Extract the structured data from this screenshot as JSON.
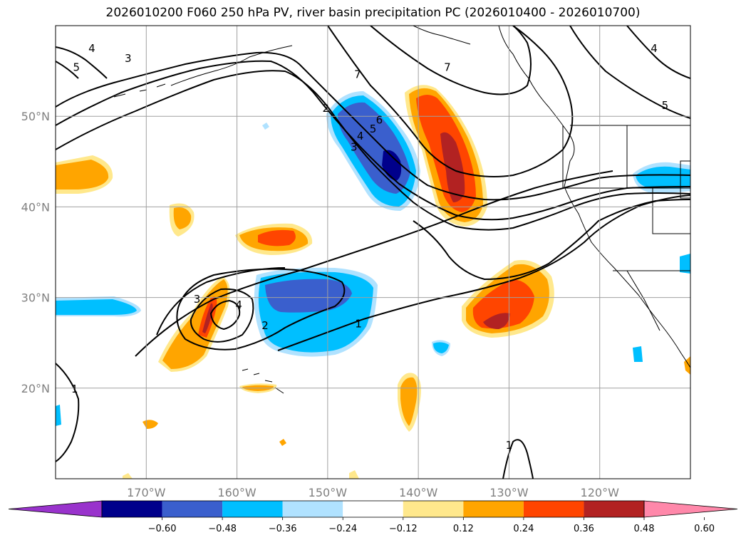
{
  "title": "2026010200 F060 250 hPa PV, river basin precipitation PC (2026010400 - 2026010700)",
  "map": {
    "lon_range": [
      -180,
      -110
    ],
    "lat_range": [
      10,
      60
    ],
    "lat_ticks": [
      {
        "value": 50,
        "label": "50°N"
      },
      {
        "value": 40,
        "label": "40°N"
      },
      {
        "value": 30,
        "label": "30°N"
      },
      {
        "value": 20,
        "label": "20°N"
      }
    ],
    "lon_ticks": [
      {
        "value": -170,
        "label": "170°W"
      },
      {
        "value": -160,
        "label": "160°W"
      },
      {
        "value": -150,
        "label": "150°W"
      },
      {
        "value": -140,
        "label": "140°W"
      },
      {
        "value": -130,
        "label": "130°W"
      },
      {
        "value": -120,
        "label": "120°W"
      }
    ],
    "grid": true,
    "pv_contour_labels": [
      {
        "text": "4",
        "lon": -176,
        "lat": 57.5
      },
      {
        "text": "5",
        "lon": -177.7,
        "lat": 55.4
      },
      {
        "text": "3",
        "lon": -172,
        "lat": 56.4
      },
      {
        "text": "2",
        "lon": -150.2,
        "lat": 50.9
      },
      {
        "text": "7",
        "lon": -146.7,
        "lat": 54.6
      },
      {
        "text": "6",
        "lon": -144.3,
        "lat": 49.6
      },
      {
        "text": "5",
        "lon": -145,
        "lat": 48.6
      },
      {
        "text": "4",
        "lon": -146.4,
        "lat": 47.8
      },
      {
        "text": "3",
        "lon": -147.1,
        "lat": 46.6
      },
      {
        "text": "7",
        "lon": -136.8,
        "lat": 55.4
      },
      {
        "text": "4",
        "lon": -114,
        "lat": 57.5
      },
      {
        "text": "5",
        "lon": -112.8,
        "lat": 51.2
      },
      {
        "text": "3",
        "lon": -164.4,
        "lat": 29.8
      },
      {
        "text": "4",
        "lon": -159.8,
        "lat": 29.2
      },
      {
        "text": "2",
        "lon": -156.9,
        "lat": 26.9
      },
      {
        "text": "1",
        "lon": -146.6,
        "lat": 27.1
      },
      {
        "text": "1",
        "lon": -177.9,
        "lat": 19.9
      },
      {
        "text": "1",
        "lon": -130,
        "lat": 13.7
      }
    ]
  },
  "colorbar": {
    "colors": [
      "#9933cc",
      "#00008b",
      "#3a5fcd",
      "#00bfff",
      "#b0e2ff",
      "#ffffff",
      "#ffe88c",
      "#ffa500",
      "#ff4500",
      "#b22222",
      "#ff88aa"
    ],
    "ticks": [
      "−0.60",
      "−0.48",
      "−0.36",
      "−0.24",
      "−0.12",
      "0.12",
      "0.24",
      "0.36",
      "0.48",
      "0.60"
    ]
  }
}
